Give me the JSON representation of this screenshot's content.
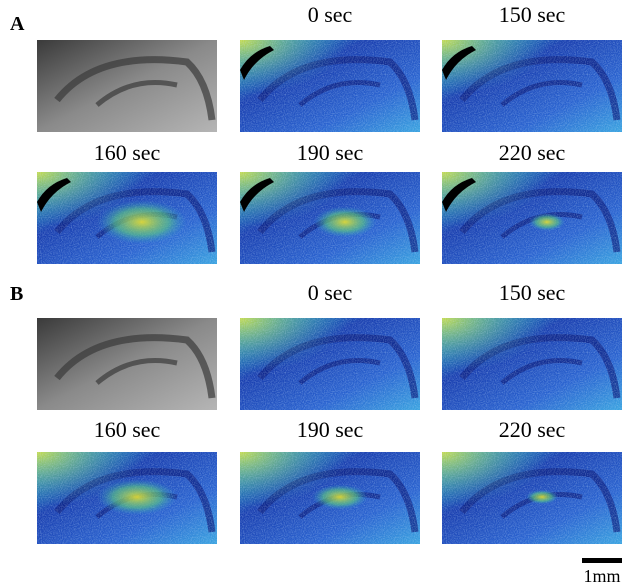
{
  "panels": [
    {
      "label": "A",
      "times": [
        "0 sec",
        "150 sec",
        "160 sec",
        "190 sec",
        "220 sec"
      ]
    },
    {
      "label": "B",
      "times": [
        "0 sec",
        "150 sec",
        "160 sec",
        "190 sec",
        "220 sec"
      ]
    }
  ],
  "scale_bar": "1mm"
}
